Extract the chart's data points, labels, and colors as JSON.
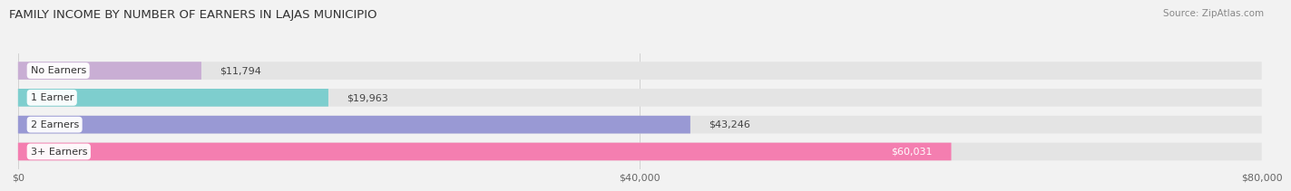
{
  "title": "FAMILY INCOME BY NUMBER OF EARNERS IN LAJAS MUNICIPIO",
  "source": "Source: ZipAtlas.com",
  "categories": [
    "No Earners",
    "1 Earner",
    "2 Earners",
    "3+ Earners"
  ],
  "values": [
    11794,
    19963,
    43246,
    60031
  ],
  "bar_colors": [
    "#c9aed4",
    "#7ecece",
    "#9999d4",
    "#f47eb0"
  ],
  "bar_labels": [
    "$11,794",
    "$19,963",
    "$43,246",
    "$60,031"
  ],
  "label_inside": [
    false,
    false,
    false,
    true
  ],
  "xlim": [
    0,
    80000
  ],
  "xticks": [
    0,
    40000,
    80000
  ],
  "xticklabels": [
    "$0",
    "$40,000",
    "$80,000"
  ],
  "background_color": "#f2f2f2",
  "bar_bg_color": "#e4e4e4",
  "title_fontsize": 9.5,
  "source_fontsize": 7.5,
  "bar_height": 0.62
}
